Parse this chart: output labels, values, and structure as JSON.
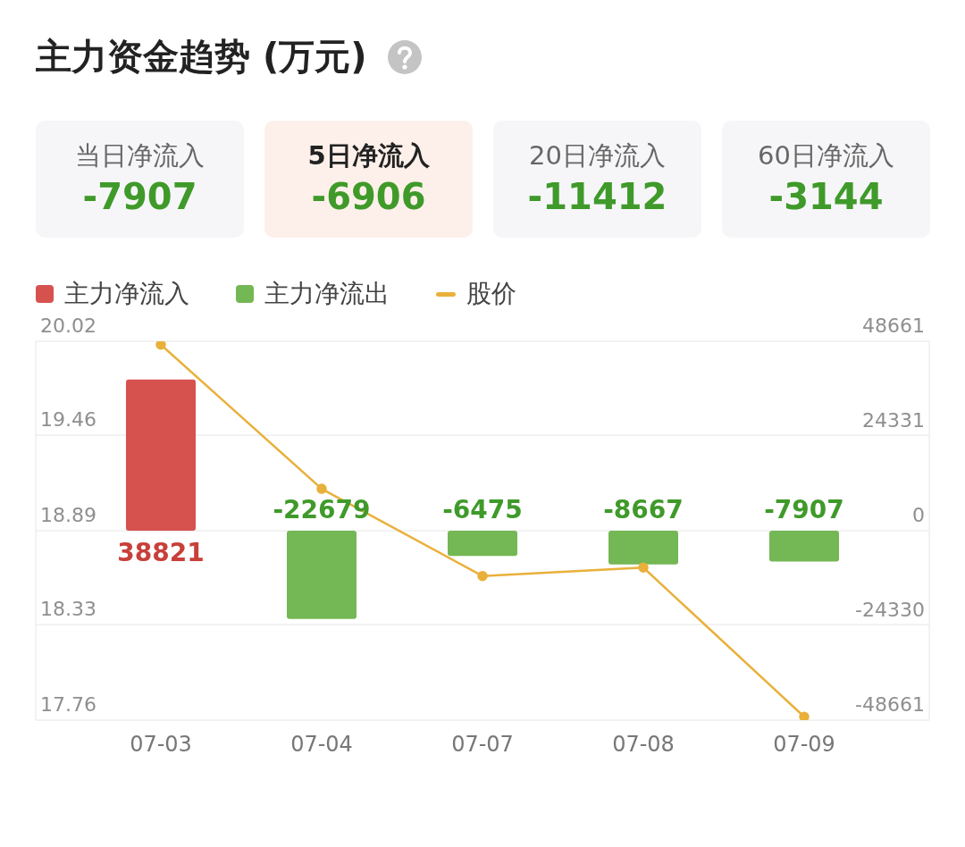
{
  "chart_data": {
    "type": "bar",
    "title": "主力资金趋势 (万元)",
    "annotations": [
      "当日净流入",
      "-7907",
      "5日净流入",
      "-6906",
      "20日净流入",
      "-11412",
      "60日净流入",
      "-3144"
    ],
    "categories": [
      "07-03",
      "07-04",
      "07-07",
      "07-08",
      "07-09"
    ],
    "stacked": true,
    "series": [
      {
        "name": "主力净流入",
        "color": "#d6524e",
        "axis": "y2",
        "values": [
          38821,
          null,
          null,
          null,
          null
        ],
        "value_labels": [
          "38821",
          null,
          null,
          null,
          null
        ]
      },
      {
        "name": "主力净流出",
        "color": "#74b755",
        "axis": "y2",
        "values": [
          null,
          -22679,
          -6475,
          -8667,
          -7907
        ],
        "value_labels": [
          null,
          "-22679",
          "-6475",
          "-8667",
          "-7907"
        ]
      },
      {
        "name": "股价",
        "type": "line",
        "color": "#e9b03a",
        "marker": "circle",
        "values": [
          20.0,
          19.14,
          18.62,
          18.67,
          17.78
        ]
      }
    ],
    "ylim": [
      17.76,
      20.02
    ],
    "yticks": [
      20.02,
      19.46,
      18.89,
      18.33,
      17.76
    ],
    "y2lim": [
      -48661,
      48661
    ],
    "y2ticks": [
      48661,
      24331,
      0,
      -24330,
      -48661
    ],
    "grid": "y",
    "legend": "top left"
  }
}
